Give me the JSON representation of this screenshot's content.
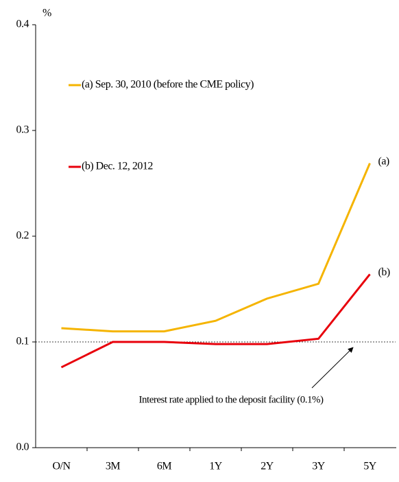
{
  "chart_data": {
    "type": "line",
    "y_unit": "%",
    "categories": [
      "O/N",
      "3M",
      "6M",
      "1Y",
      "2Y",
      "3Y",
      "5Y"
    ],
    "series": [
      {
        "name": "(a) Sep. 30, 2010 (before the CME policy)",
        "end_label": "(a)",
        "color": "#f5b400",
        "values": [
          0.113,
          0.11,
          0.11,
          0.12,
          0.141,
          0.155,
          0.269
        ]
      },
      {
        "name": "(b) Dec. 12, 2012",
        "end_label": "(b)",
        "color": "#e8000b",
        "values": [
          0.076,
          0.1,
          0.1,
          0.098,
          0.098,
          0.103,
          0.164
        ]
      }
    ],
    "ylim": [
      0,
      0.4
    ],
    "yticks": [
      {
        "value": 0,
        "label": "0.0"
      },
      0.1,
      0.2,
      0.3,
      0.4
    ],
    "reference_line": 0.1,
    "annotation": "Interest rate applied to the deposit facility (0.1%)"
  }
}
